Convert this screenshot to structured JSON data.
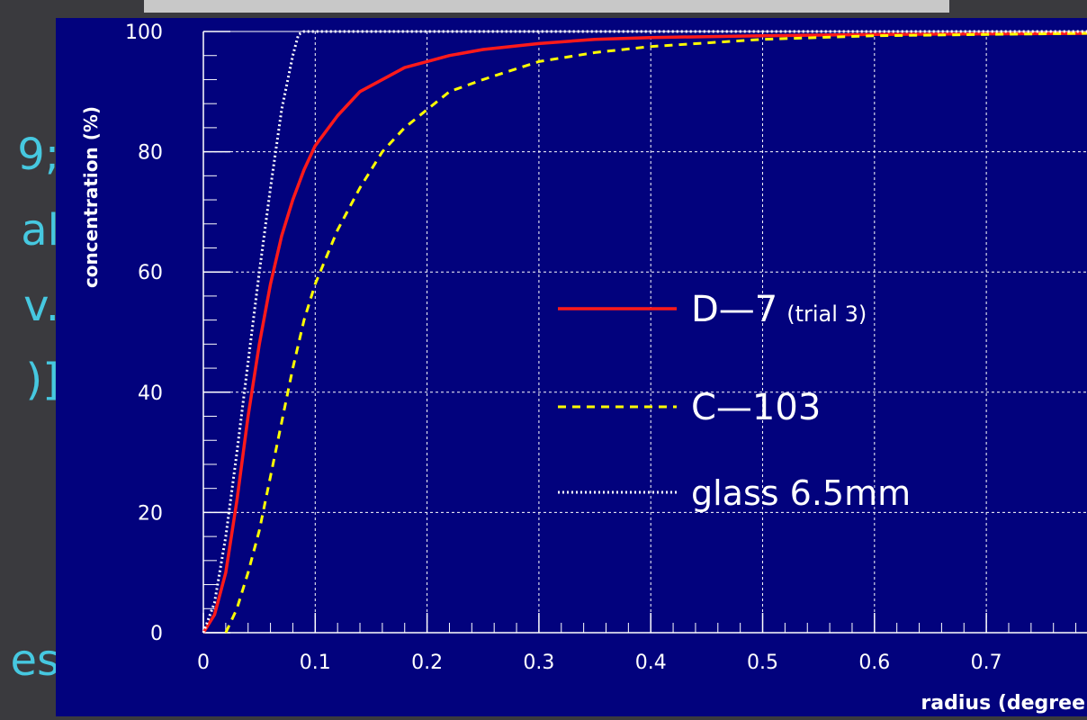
{
  "side_text": [
    "9;",
    "al",
    "v.",
    ")]",
    "es"
  ],
  "chart_data": {
    "type": "line",
    "xlabel": "radius (degree",
    "ylabel": "concentration (%)",
    "xlim": [
      0,
      0.79
    ],
    "ylim": [
      0,
      100
    ],
    "x_ticks": [
      "0",
      "0.1",
      "0.2",
      "0.3",
      "0.4",
      "0.5",
      "0.6",
      "0.7"
    ],
    "y_ticks": [
      "0",
      "20",
      "40",
      "60",
      "80",
      "100"
    ],
    "grid": true,
    "legend_position": "center-right",
    "series": [
      {
        "name": "D—7",
        "name_note": "(trial 3)",
        "color": "#ff1a1a",
        "style": "solid",
        "x": [
          0,
          0.01,
          0.02,
          0.03,
          0.04,
          0.05,
          0.06,
          0.07,
          0.08,
          0.09,
          0.1,
          0.12,
          0.14,
          0.16,
          0.18,
          0.2,
          0.22,
          0.25,
          0.3,
          0.35,
          0.4,
          0.5,
          0.6,
          0.79
        ],
        "y": [
          0,
          3,
          10,
          22,
          36,
          48,
          58,
          66,
          72,
          77,
          81,
          86,
          90,
          92,
          94,
          95,
          96,
          97,
          98,
          98.7,
          99,
          99.3,
          99.5,
          99.7
        ]
      },
      {
        "name": "C—103",
        "color": "#ffff00",
        "style": "dashed",
        "x": [
          0.02,
          0.03,
          0.04,
          0.05,
          0.06,
          0.07,
          0.08,
          0.09,
          0.1,
          0.12,
          0.14,
          0.16,
          0.18,
          0.2,
          0.22,
          0.25,
          0.3,
          0.35,
          0.4,
          0.5,
          0.6,
          0.79
        ],
        "y": [
          0,
          4,
          10,
          17,
          26,
          35,
          44,
          52,
          58,
          67,
          74,
          80,
          84,
          87,
          90,
          92,
          95,
          96.5,
          97.5,
          98.7,
          99.3,
          99.7
        ]
      },
      {
        "name": "glass 6.5mm",
        "color": "#ffffff",
        "style": "dotted",
        "x": [
          0,
          0.01,
          0.02,
          0.03,
          0.04,
          0.05,
          0.06,
          0.07,
          0.08,
          0.085,
          0.09,
          0.1,
          0.2,
          0.4,
          0.79
        ],
        "y": [
          0,
          5,
          16,
          30,
          45,
          60,
          74,
          87,
          96,
          99.5,
          100,
          100,
          100,
          100,
          100
        ]
      }
    ]
  }
}
